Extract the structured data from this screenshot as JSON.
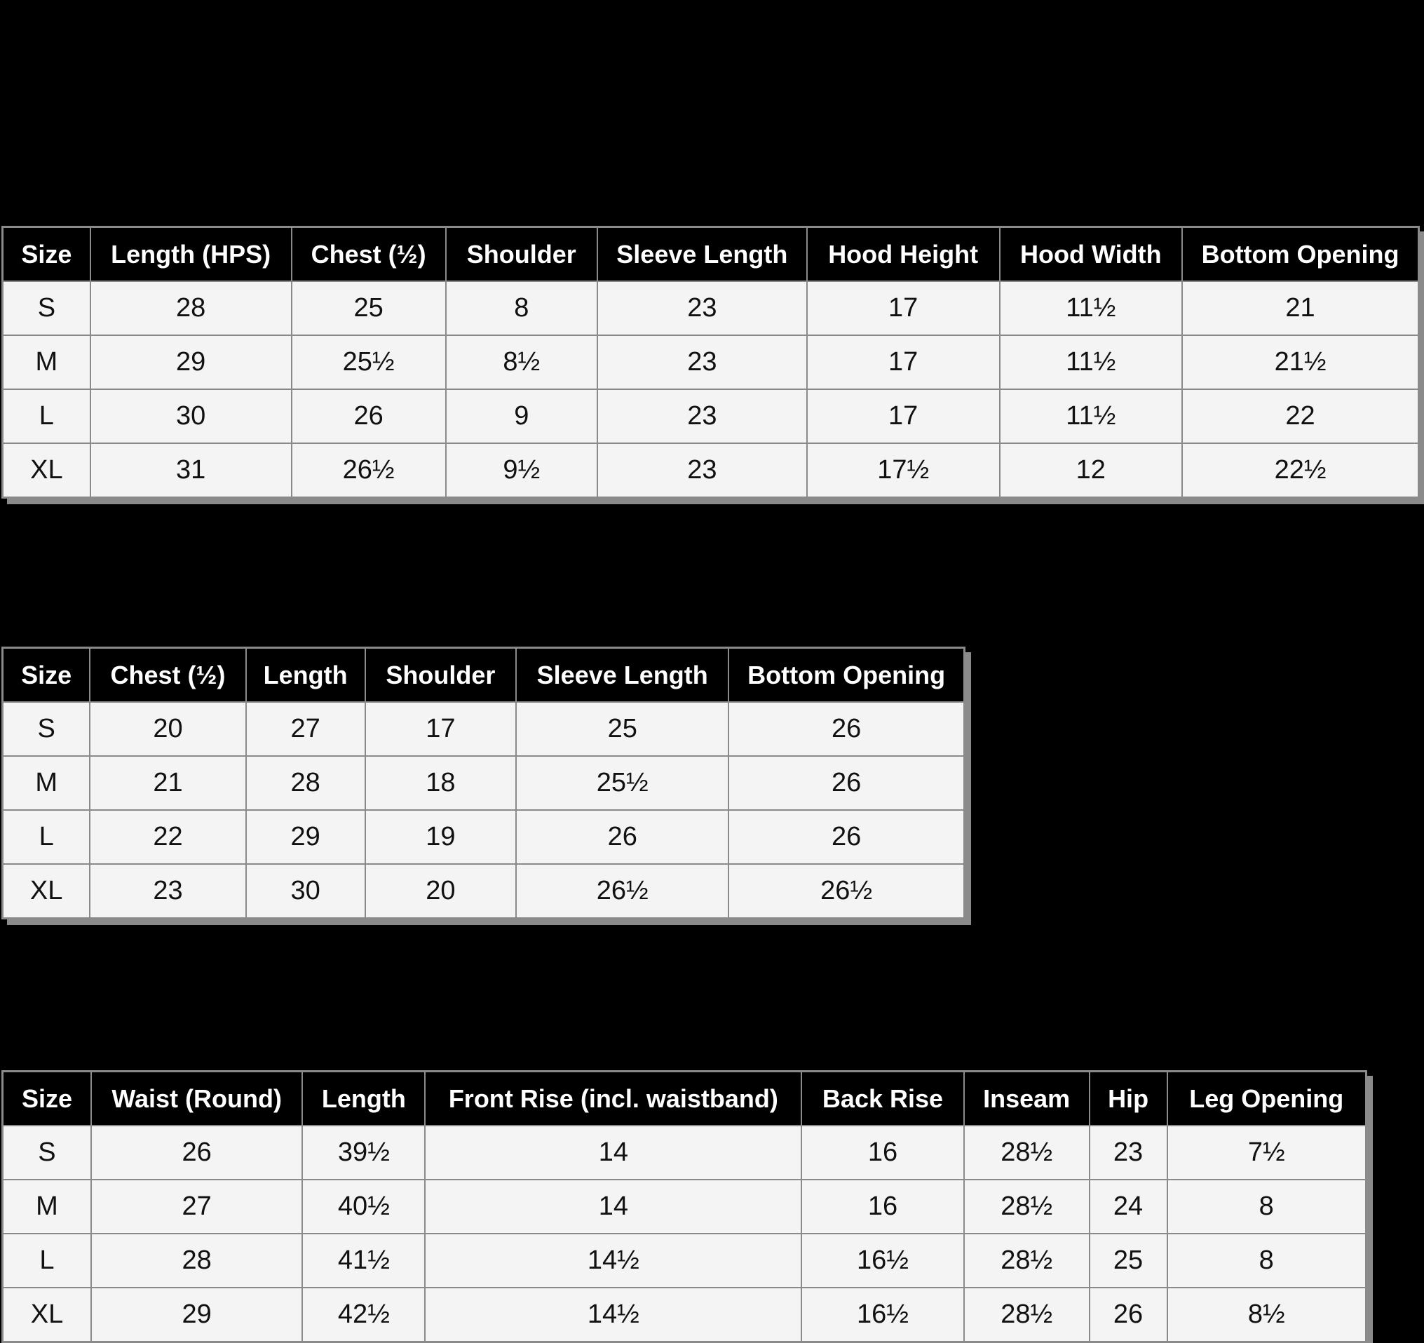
{
  "colors": {
    "background": "#000000",
    "header_bg": "#000000",
    "header_text": "#ffffff",
    "cell_bg": "#f4f4f4",
    "cell_text": "#111111",
    "border": "#8a8a8a"
  },
  "tables": [
    {
      "columns": [
        "Size",
        "Length (HPS)",
        "Chest (½)",
        "Shoulder",
        "Sleeve Length",
        "Hood Height",
        "Hood Width",
        "Bottom Opening"
      ],
      "rows": [
        [
          "S",
          "28",
          "25",
          "8",
          "23",
          "17",
          "11½",
          "21"
        ],
        [
          "M",
          "29",
          "25½",
          "8½",
          "23",
          "17",
          "11½",
          "21½"
        ],
        [
          "L",
          "30",
          "26",
          "9",
          "23",
          "17",
          "11½",
          "22"
        ],
        [
          "XL",
          "31",
          "26½",
          "9½",
          "23",
          "17½",
          "12",
          "22½"
        ]
      ]
    },
    {
      "columns": [
        "Size",
        "Chest (½)",
        "Length",
        "Shoulder",
        "Sleeve Length",
        "Bottom Opening"
      ],
      "rows": [
        [
          "S",
          "20",
          "27",
          "17",
          "25",
          "26"
        ],
        [
          "M",
          "21",
          "28",
          "18",
          "25½",
          "26"
        ],
        [
          "L",
          "22",
          "29",
          "19",
          "26",
          "26"
        ],
        [
          "XL",
          "23",
          "30",
          "20",
          "26½",
          "26½"
        ]
      ]
    },
    {
      "columns": [
        "Size",
        "Waist (Round)",
        "Length",
        "Front Rise (incl. waistband)",
        "Back Rise",
        "Inseam",
        "Hip",
        "Leg Opening"
      ],
      "rows": [
        [
          "S",
          "26",
          "39½",
          "14",
          "16",
          "28½",
          "23",
          "7½"
        ],
        [
          "M",
          "27",
          "40½",
          "14",
          "16",
          "28½",
          "24",
          "8"
        ],
        [
          "L",
          "28",
          "41½",
          "14½",
          "16½",
          "28½",
          "25",
          "8"
        ],
        [
          "XL",
          "29",
          "42½",
          "14½",
          "16½",
          "28½",
          "26",
          "8½"
        ]
      ]
    }
  ]
}
